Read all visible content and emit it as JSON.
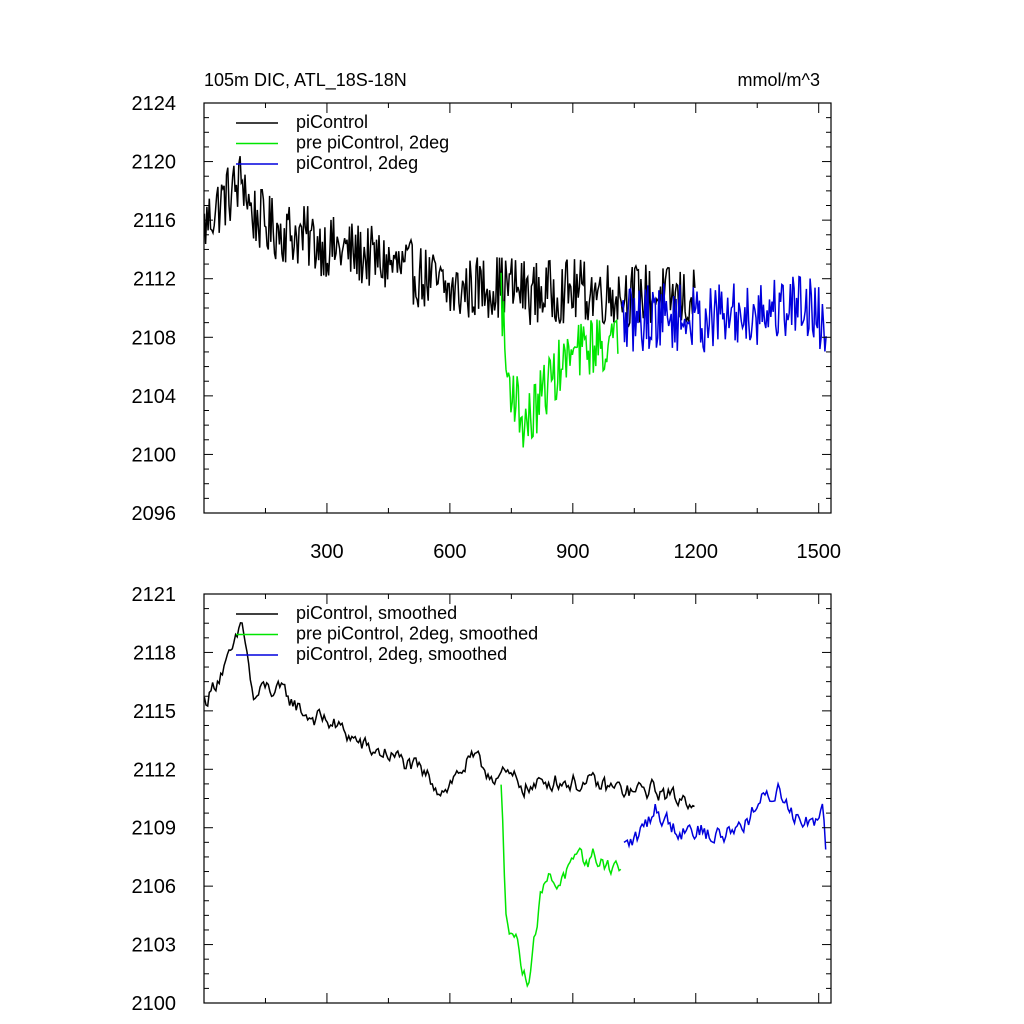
{
  "chart_data": [
    {
      "type": "line",
      "title": "105m DIC, ATL_18S-18N",
      "units": "mmol/m^3",
      "xlim": [
        0,
        1530
      ],
      "ylim": [
        2096,
        2124
      ],
      "xticks": [
        300,
        600,
        900,
        1200,
        1500
      ],
      "yticks": [
        2096,
        2100,
        2104,
        2108,
        2112,
        2116,
        2120,
        2124
      ],
      "grid": false,
      "legend_position": "top-left",
      "series": [
        {
          "name": "piControl",
          "color": "#000000",
          "x_start": 1,
          "x_end": 1200,
          "trend": [
            [
              1,
              2115.5
            ],
            [
              20,
              2116.5
            ],
            [
              50,
              2117.5
            ],
            [
              80,
              2118.2
            ],
            [
              95,
              2119.0
            ],
            [
              115,
              2116.5
            ],
            [
              160,
              2115.5
            ],
            [
              250,
              2114.8
            ],
            [
              300,
              2114.2
            ],
            [
              400,
              2113.5
            ],
            [
              500,
              2112.5
            ],
            [
              560,
              2111.8
            ],
            [
              600,
              2111.0
            ],
            [
              680,
              2111.5
            ],
            [
              750,
              2111.5
            ],
            [
              800,
              2111.0
            ],
            [
              900,
              2111.2
            ],
            [
              1000,
              2111.0
            ],
            [
              1100,
              2110.8
            ],
            [
              1200,
              2110.5
            ]
          ],
          "noise": 2.2
        },
        {
          "name": "pre piControl, 2deg",
          "color": "#00e600",
          "x_start": 725,
          "x_end": 1010,
          "trend": [
            [
              725,
              2111.5
            ],
            [
              730,
              2109.0
            ],
            [
              738,
              2105.5
            ],
            [
              760,
              2104.0
            ],
            [
              780,
              2102.0
            ],
            [
              800,
              2102.5
            ],
            [
              830,
              2104.5
            ],
            [
              870,
              2106.0
            ],
            [
              900,
              2106.8
            ],
            [
              950,
              2107.5
            ],
            [
              1010,
              2107.5
            ]
          ],
          "noise": 2.0
        },
        {
          "name": "piControl, 2deg",
          "color": "#0000dd",
          "x_start": 1020,
          "x_end": 1520,
          "trend": [
            [
              1020,
              2109.0
            ],
            [
              1100,
              2109.5
            ],
            [
              1200,
              2109.2
            ],
            [
              1300,
              2109.5
            ],
            [
              1400,
              2110.0
            ],
            [
              1470,
              2110.5
            ],
            [
              1520,
              2108.5
            ]
          ],
          "noise": 2.3
        }
      ]
    },
    {
      "type": "line",
      "xlim": [
        0,
        1530
      ],
      "ylim": [
        2100,
        2121
      ],
      "xticks": [
        300,
        600,
        900,
        1200,
        1500
      ],
      "yticks": [
        2100,
        2103,
        2106,
        2109,
        2112,
        2115,
        2118,
        2121
      ],
      "grid": false,
      "legend_position": "top-left",
      "series": [
        {
          "name": "piControl, smoothed",
          "color": "#000000",
          "x_start": 1,
          "x_end": 1200,
          "trend": [
            [
              1,
              2115.5
            ],
            [
              10,
              2115.7
            ],
            [
              40,
              2117.0
            ],
            [
              60,
              2117.5
            ],
            [
              80,
              2118.5
            ],
            [
              90,
              2119.5
            ],
            [
              100,
              2118.8
            ],
            [
              120,
              2115.5
            ],
            [
              150,
              2116.2
            ],
            [
              200,
              2115.8
            ],
            [
              250,
              2114.8
            ],
            [
              300,
              2114.5
            ],
            [
              350,
              2113.8
            ],
            [
              400,
              2113.0
            ],
            [
              450,
              2112.8
            ],
            [
              500,
              2112.2
            ],
            [
              550,
              2111.5
            ],
            [
              580,
              2111.0
            ],
            [
              600,
              2111.3
            ],
            [
              650,
              2112.5
            ],
            [
              700,
              2111.8
            ],
            [
              750,
              2111.5
            ],
            [
              800,
              2111.0
            ],
            [
              850,
              2111.5
            ],
            [
              900,
              2111.3
            ],
            [
              950,
              2111.2
            ],
            [
              1000,
              2111.0
            ],
            [
              1050,
              2110.8
            ],
            [
              1100,
              2111.0
            ],
            [
              1150,
              2110.5
            ],
            [
              1200,
              2110.5
            ]
          ],
          "noise": 0.9
        },
        {
          "name": "pre piControl, 2deg, smoothed",
          "color": "#00e600",
          "x_start": 725,
          "x_end": 1020,
          "trend": [
            [
              725,
              2111.0
            ],
            [
              730,
              2108.5
            ],
            [
              735,
              2105.0
            ],
            [
              745,
              2104.2
            ],
            [
              760,
              2103.5
            ],
            [
              780,
              2101.5
            ],
            [
              790,
              2101.0
            ],
            [
              800,
              2102.8
            ],
            [
              815,
              2104.5
            ],
            [
              830,
              2106.5
            ],
            [
              860,
              2106.2
            ],
            [
              900,
              2107.0
            ],
            [
              950,
              2107.5
            ],
            [
              1000,
              2107.0
            ],
            [
              1020,
              2107.0
            ]
          ],
          "noise": 0.9
        },
        {
          "name": "piControl, 2deg, smoothed",
          "color": "#0000dd",
          "x_start": 1025,
          "x_end": 1520,
          "trend": [
            [
              1025,
              2108.0
            ],
            [
              1060,
              2108.5
            ],
            [
              1100,
              2110.0
            ],
            [
              1150,
              2109.0
            ],
            [
              1200,
              2109.0
            ],
            [
              1250,
              2108.5
            ],
            [
              1300,
              2109.0
            ],
            [
              1350,
              2110.0
            ],
            [
              1400,
              2111.0
            ],
            [
              1450,
              2109.5
            ],
            [
              1500,
              2109.5
            ],
            [
              1510,
              2110.5
            ],
            [
              1520,
              2107.5
            ]
          ],
          "noise": 1.0
        }
      ]
    }
  ]
}
